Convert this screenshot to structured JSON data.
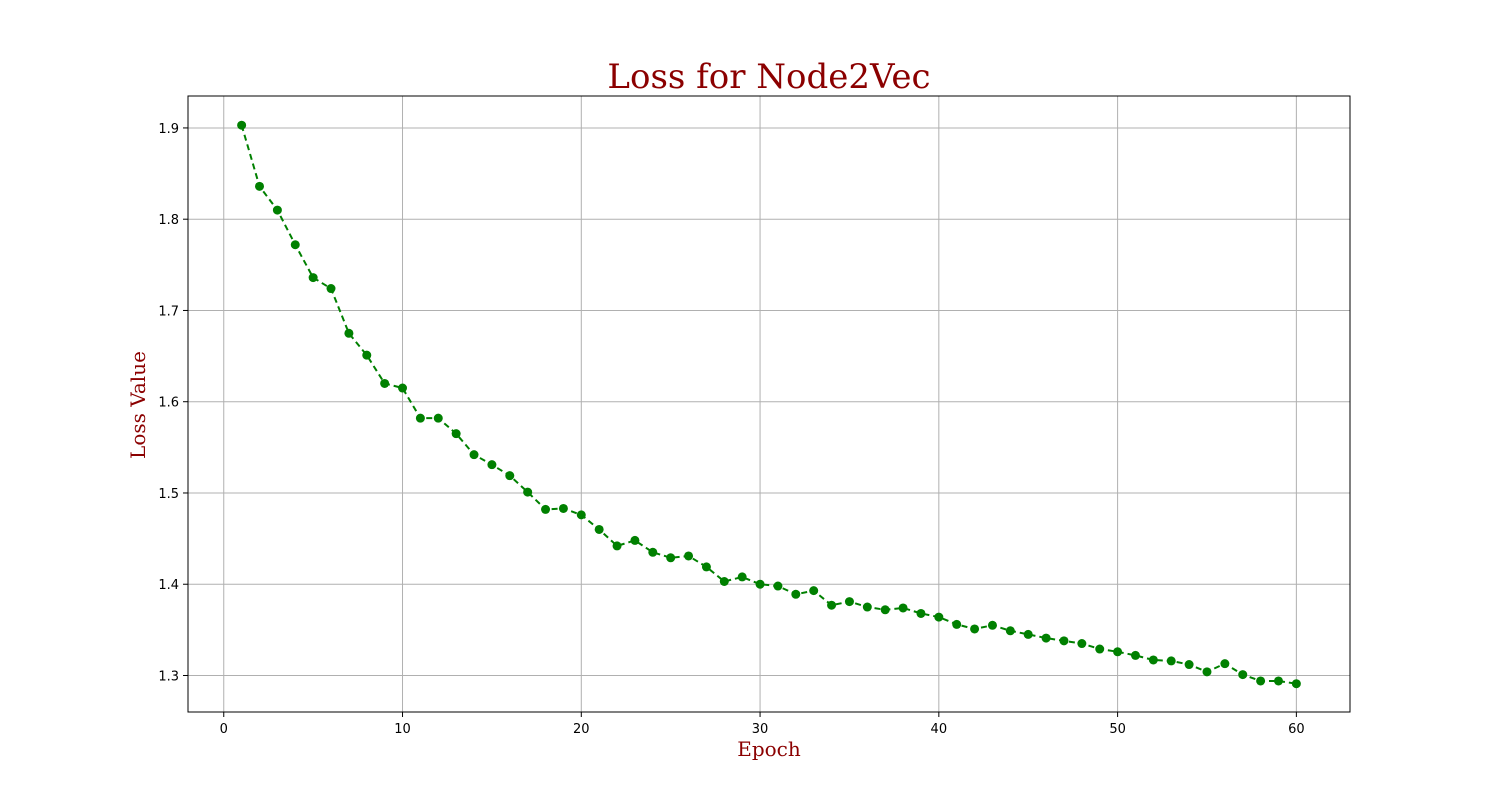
{
  "chart_data": {
    "type": "line",
    "title": "Loss for Node2Vec",
    "xlabel": "Epoch",
    "ylabel": "Loss Value",
    "xlim": [
      -2,
      63
    ],
    "ylim": [
      1.26,
      1.935
    ],
    "xticks": [
      0,
      10,
      20,
      30,
      40,
      50,
      60
    ],
    "yticks": [
      1.3,
      1.4,
      1.5,
      1.6,
      1.7,
      1.8,
      1.9
    ],
    "grid": true,
    "line_style": "dashed",
    "marker": "circle",
    "color": "#008000",
    "title_color": "#8b0000",
    "series": [
      {
        "x": [
          1,
          2,
          3,
          4,
          5,
          6,
          7,
          8,
          9,
          10,
          11,
          12,
          13,
          14,
          15,
          16,
          17,
          18,
          19,
          20,
          21,
          22,
          23,
          24,
          25,
          26,
          27,
          28,
          29,
          30,
          31,
          32,
          33,
          34,
          35,
          36,
          37,
          38,
          39,
          40,
          41,
          42,
          43,
          44,
          45,
          46,
          47,
          48,
          49,
          50,
          51,
          52,
          53,
          54,
          55,
          56,
          57,
          58,
          59,
          60
        ],
        "values": [
          1.903,
          1.836,
          1.81,
          1.772,
          1.736,
          1.724,
          1.675,
          1.651,
          1.62,
          1.615,
          1.582,
          1.582,
          1.565,
          1.542,
          1.531,
          1.519,
          1.501,
          1.482,
          1.483,
          1.476,
          1.46,
          1.442,
          1.448,
          1.435,
          1.429,
          1.431,
          1.419,
          1.403,
          1.408,
          1.4,
          1.398,
          1.389,
          1.393,
          1.377,
          1.381,
          1.375,
          1.372,
          1.374,
          1.368,
          1.364,
          1.356,
          1.351,
          1.355,
          1.349,
          1.345,
          1.341,
          1.338,
          1.335,
          1.329,
          1.326,
          1.322,
          1.317,
          1.316,
          1.312,
          1.304,
          1.313,
          1.301,
          1.294,
          1.294,
          1.291
        ]
      }
    ]
  }
}
